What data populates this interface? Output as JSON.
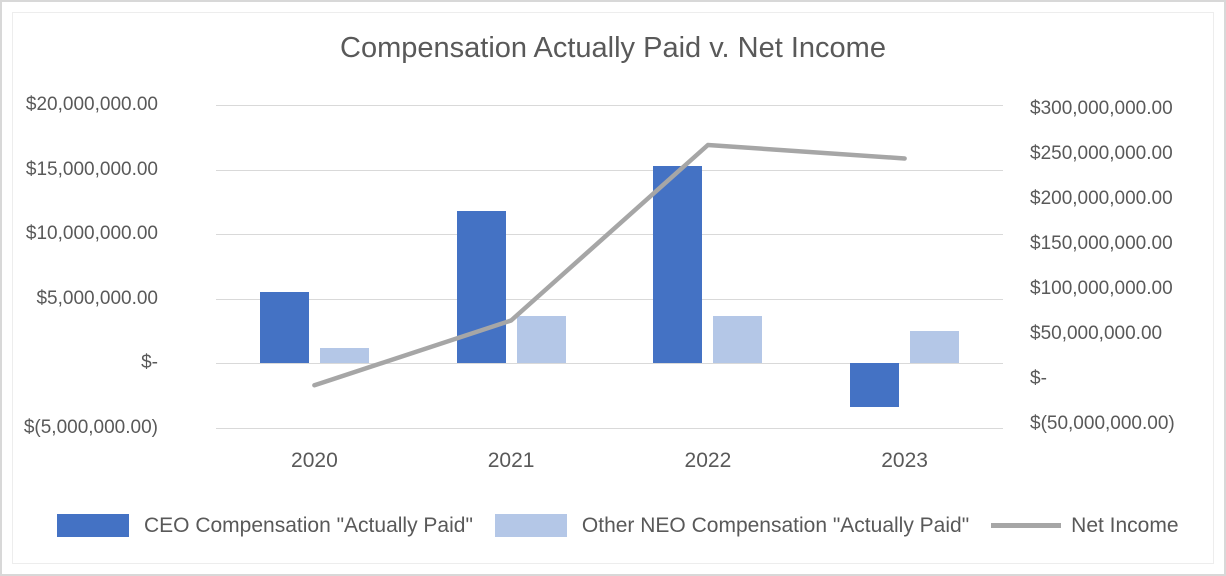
{
  "frame": {
    "background": "#ffffff",
    "outer_border_color": "#d8d8d8",
    "inner_border_color": "#ededed"
  },
  "chart_data": {
    "type": "bar",
    "subtype": "combo-clustered-bar-with-line",
    "title": "Compensation Actually Paid v. Net Income",
    "categories": [
      "2020",
      "2021",
      "2022",
      "2023"
    ],
    "series": [
      {
        "name": "CEO Compensation \"Actually Paid\"",
        "kind": "bar",
        "axis": "left",
        "color": "#4472C4",
        "values": [
          5500000,
          11800000,
          15300000,
          -3400000
        ]
      },
      {
        "name": "Other NEO Compensation \"Actually Paid\"",
        "kind": "bar",
        "axis": "left",
        "color": "#B4C7E7",
        "values": [
          1200000,
          3700000,
          3700000,
          2500000
        ]
      },
      {
        "name": "Net Income",
        "kind": "line",
        "axis": "right",
        "color": "#A6A6A6",
        "values": [
          -7000000,
          65000000,
          260000000,
          245000000
        ]
      }
    ],
    "left_axis": {
      "min": -5000000,
      "max": 20000000,
      "step": 5000000,
      "tick_labels": [
        "$20,000,000.00",
        "$15,000,000.00",
        "$10,000,000.00",
        "$5,000,000.00",
        "$-",
        "$(5,000,000.00)"
      ]
    },
    "right_axis": {
      "min": -50000000,
      "max": 300000000,
      "step": 50000000,
      "tick_labels": [
        "$300,000,000.00",
        "$250,000,000.00",
        "$200,000,000.00",
        "$150,000,000.00",
        "$100,000,000.00",
        "$50,000,000.00",
        "$-",
        "$(50,000,000.00)"
      ]
    },
    "legend_position": "bottom",
    "grid": true,
    "text_color": "#595959",
    "gridline_color": "#d9d9d9"
  }
}
